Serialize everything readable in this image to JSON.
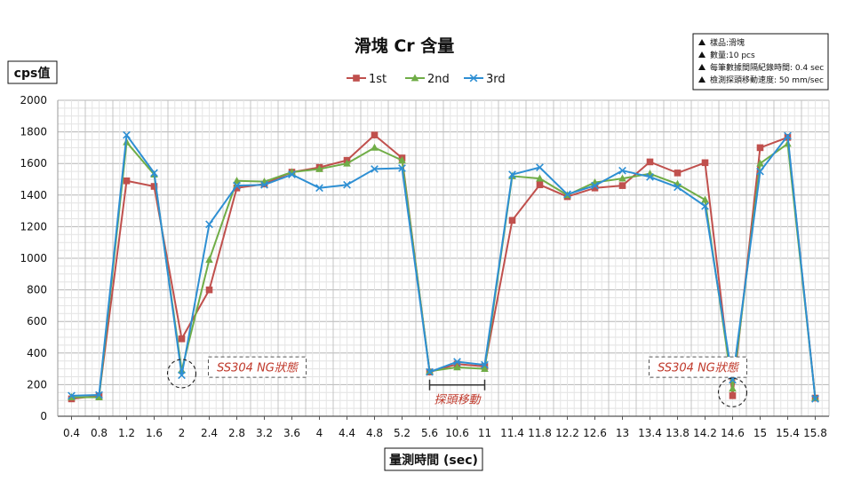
{
  "chart_data": {
    "type": "line",
    "title": "滑塊 Cr 含量",
    "ylabel": "cps值",
    "xlabel": "量測時間 (sec)",
    "ylim": [
      0,
      2000
    ],
    "ytick_step": 200,
    "grid": true,
    "legend_position": "top-center",
    "categories": [
      "0.4",
      "0.8",
      "1.2",
      "1.6",
      "2",
      "2.4",
      "2.8",
      "3.2",
      "3.6",
      "4",
      "4.4",
      "4.8",
      "5.2",
      "5.6",
      "10.6",
      "11",
      "11.4",
      "11.8",
      "12.2",
      "12.6",
      "13",
      "13.4",
      "13.8",
      "14.2",
      "14.6",
      "15",
      "15.4",
      "15.8"
    ],
    "series": [
      {
        "name": "1st",
        "color": "#c0504d",
        "marker": "square",
        "values": [
          110,
          130,
          1490,
          1455,
          490,
          800,
          1445,
          1470,
          1545,
          1575,
          1620,
          1780,
          1635,
          280,
          330,
          315,
          1240,
          1465,
          1390,
          1445,
          1460,
          1610,
          1540,
          1605,
          130,
          1700,
          1765,
          115
        ]
      },
      {
        "name": "2nd",
        "color": "#70ad47",
        "marker": "triangle",
        "values": [
          120,
          120,
          1735,
          1530,
          290,
          990,
          1490,
          1485,
          1545,
          1565,
          1600,
          1700,
          1620,
          285,
          310,
          300,
          1520,
          1505,
          1400,
          1480,
          1505,
          1535,
          1470,
          1370,
          175,
          1600,
          1725,
          115
        ]
      },
      {
        "name": "3rd",
        "color": "#2e8fd3",
        "marker": "x",
        "values": [
          130,
          135,
          1780,
          1540,
          260,
          1215,
          1460,
          1465,
          1530,
          1445,
          1465,
          1565,
          1570,
          280,
          345,
          325,
          1530,
          1575,
          1405,
          1460,
          1555,
          1515,
          1450,
          1330,
          230,
          1550,
          1775,
          110
        ]
      }
    ],
    "annotations": [
      {
        "text": "SS304  NG狀態",
        "at_category": "2.4",
        "y": 300
      },
      {
        "text": "SS304  NG狀態",
        "at_category": "13.4",
        "y": 300
      },
      {
        "text": "探頭移動",
        "span_categories": [
          "5.6",
          "11"
        ],
        "y": 170
      }
    ],
    "highlight_circles": [
      {
        "category": "2",
        "y": 270
      },
      {
        "category": "14.6",
        "y": 150
      }
    ]
  },
  "info_box": {
    "lines": [
      "樣品:滑塊",
      "數量:10 pcs",
      "每筆數據間隔紀錄時間: 0.4 sec",
      "檢測探頭移動速度: 50 mm/sec"
    ]
  }
}
